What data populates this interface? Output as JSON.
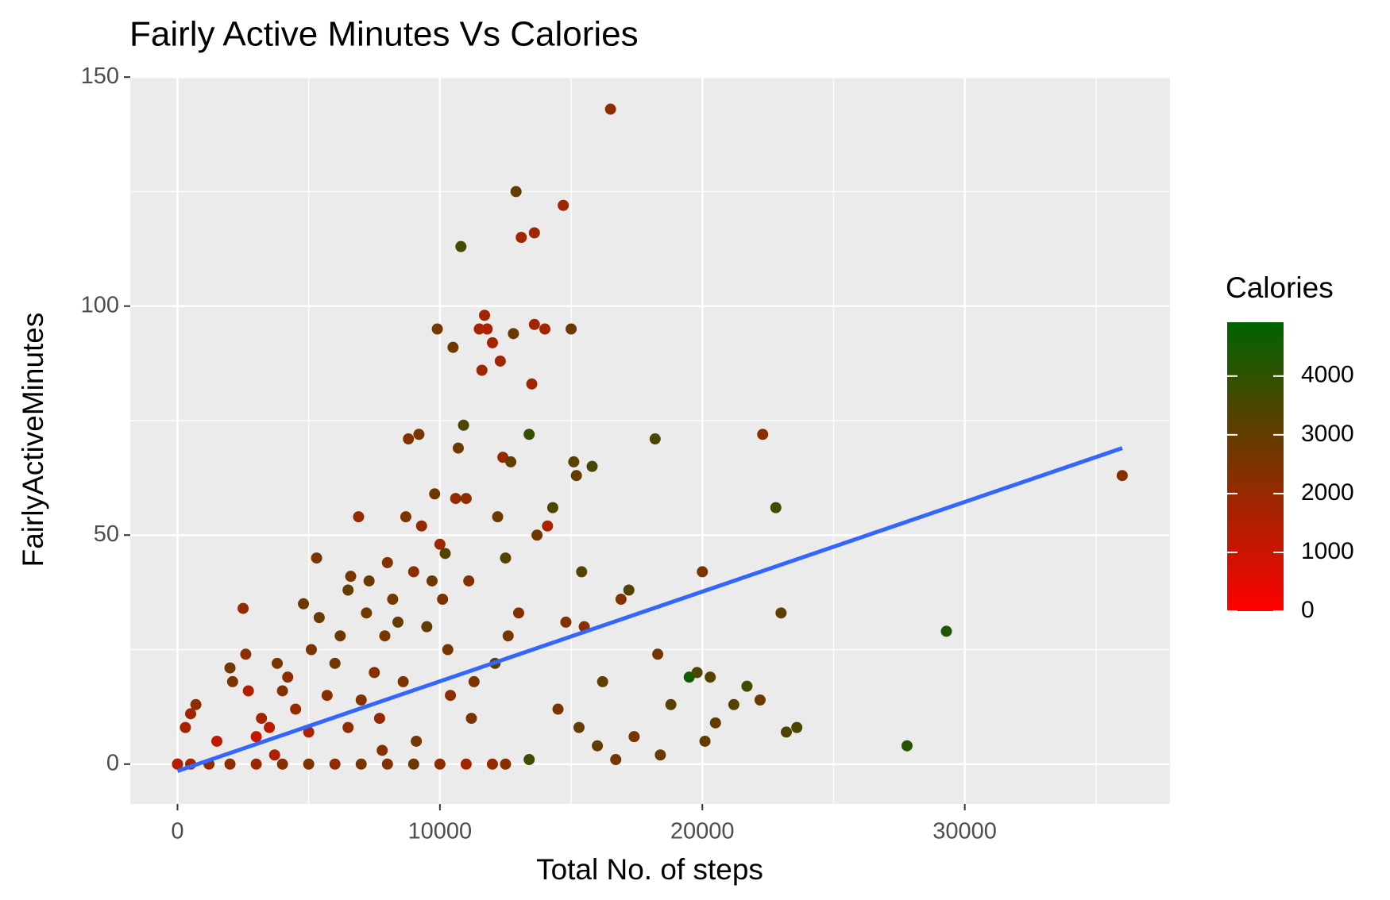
{
  "chart_data": {
    "type": "scatter",
    "title": "Fairly Active Minutes Vs Calories",
    "x_label": "Total No. of steps",
    "y_label": "FairlyActiveMinutes",
    "xlim": [
      -1800,
      37820
    ],
    "ylim": [
      -8.7,
      150.2
    ],
    "xticks": [
      0,
      10000,
      20000,
      30000
    ],
    "yticks": [
      0,
      50,
      100,
      150
    ],
    "minor_xticks": [
      5000,
      15000,
      25000,
      35000
    ],
    "minor_yticks": [
      25,
      75,
      125
    ],
    "grid": true,
    "legend_position": "right",
    "color_label": "Calories",
    "color_scale": {
      "low": "#ff0000",
      "high": "#006400",
      "limits": [
        0,
        4916
      ],
      "ticks": [
        0,
        1000,
        2000,
        3000,
        4000
      ]
    },
    "x": [
      0,
      0,
      500,
      1200,
      2000,
      3000,
      4000,
      5000,
      6000,
      7000,
      8000,
      9000,
      10000,
      11000,
      12000,
      12500,
      300,
      500,
      700,
      1500,
      2000,
      2100,
      2500,
      2600,
      2700,
      3000,
      3200,
      3500,
      3800,
      4000,
      4200,
      4500,
      4800,
      5000,
      5100,
      5300,
      5400,
      5700,
      6000,
      6200,
      6500,
      6600,
      6900,
      7000,
      7200,
      7300,
      7500,
      7700,
      7900,
      8000,
      8200,
      8400,
      8700,
      8800,
      9000,
      9200,
      9300,
      9500,
      9700,
      9800,
      9900,
      10000,
      10100,
      10200,
      10300,
      10500,
      10600,
      10700,
      10800,
      10900,
      11000,
      11100,
      11300,
      11500,
      11600,
      11700,
      11800,
      12000,
      12200,
      12300,
      12400,
      12500,
      12700,
      12800,
      12900,
      13000,
      13100,
      13400,
      13500,
      13600,
      13600,
      13700,
      14000,
      14100,
      14300,
      14500,
      14700,
      15000,
      15100,
      15200,
      15400,
      15500,
      15800,
      16200,
      16500,
      16700,
      16900,
      17200,
      17400,
      18200,
      18300,
      18400,
      18800,
      19500,
      19800,
      20000,
      20100,
      20300,
      20500,
      21200,
      21700,
      22200,
      22300,
      22800,
      23000,
      23200,
      23600,
      27800,
      29300,
      36000,
      13400,
      12600,
      11200,
      9100,
      6500,
      3700,
      14800,
      15300,
      16000,
      12100,
      10400,
      8600,
      7800
    ],
    "y": [
      0,
      0,
      0,
      0,
      0,
      0,
      0,
      0,
      0,
      0,
      0,
      0,
      0,
      0,
      0,
      0,
      8,
      11,
      13,
      5,
      21,
      18,
      34,
      24,
      16,
      6,
      10,
      8,
      22,
      16,
      19,
      12,
      35,
      7,
      25,
      45,
      32,
      15,
      22,
      28,
      38,
      41,
      54,
      14,
      33,
      40,
      20,
      10,
      28,
      44,
      36,
      31,
      54,
      71,
      42,
      72,
      52,
      30,
      40,
      59,
      95,
      48,
      36,
      46,
      25,
      91,
      58,
      69,
      113,
      74,
      58,
      40,
      18,
      95,
      86,
      98,
      95,
      92,
      54,
      88,
      67,
      45,
      66,
      94,
      125,
      33,
      115,
      72,
      83,
      116,
      96,
      50,
      95,
      52,
      56,
      12,
      122,
      95,
      66,
      63,
      42,
      30,
      65,
      18,
      143,
      1,
      36,
      38,
      6,
      71,
      24,
      2,
      13,
      19,
      20,
      42,
      5,
      19,
      9,
      13,
      17,
      14,
      72,
      56,
      33,
      7,
      8,
      4,
      29,
      63,
      1,
      28,
      10,
      5,
      8,
      2,
      31,
      8,
      4,
      22,
      15,
      18,
      3
    ],
    "color_values": [
      0,
      1400,
      1800,
      2000,
      2200,
      1900,
      2300,
      2500,
      2100,
      2600,
      2400,
      2800,
      2200,
      1800,
      2000,
      2300,
      1700,
      1900,
      2200,
      1200,
      2700,
      2500,
      2100,
      2200,
      1500,
      1000,
      1800,
      1300,
      2600,
      2400,
      2200,
      2000,
      2800,
      1600,
      2500,
      2600,
      2900,
      2300,
      2700,
      2800,
      3000,
      2600,
      2000,
      2400,
      2700,
      2900,
      2300,
      2000,
      2600,
      2400,
      2700,
      3000,
      2500,
      2400,
      2200,
      2600,
      2100,
      3000,
      2800,
      2900,
      2700,
      1900,
      2500,
      3300,
      2600,
      2800,
      2100,
      2800,
      3600,
      3500,
      2200,
      2400,
      2600,
      1800,
      1900,
      1800,
      1600,
      1700,
      2800,
      1800,
      2000,
      3300,
      3100,
      2900,
      3000,
      2400,
      1800,
      3900,
      1800,
      1900,
      1800,
      2800,
      1800,
      1600,
      3400,
      2600,
      1900,
      2900,
      3200,
      3000,
      3300,
      2200,
      3500,
      3100,
      2100,
      2700,
      2400,
      3300,
      2600,
      3500,
      2600,
      2900,
      3200,
      4600,
      3400,
      2600,
      3000,
      3300,
      3000,
      3300,
      3600,
      2800,
      2300,
      3700,
      3100,
      3400,
      3500,
      4200,
      4300,
      2300,
      3700,
      2600,
      2500,
      2700,
      2100,
      1500,
      2400,
      3000,
      3000,
      3100,
      2200,
      2500,
      2300
    ],
    "trend_line": {
      "x": [
        0,
        36000
      ],
      "y": [
        -1.5,
        69
      ],
      "color": "#3366ff"
    }
  }
}
